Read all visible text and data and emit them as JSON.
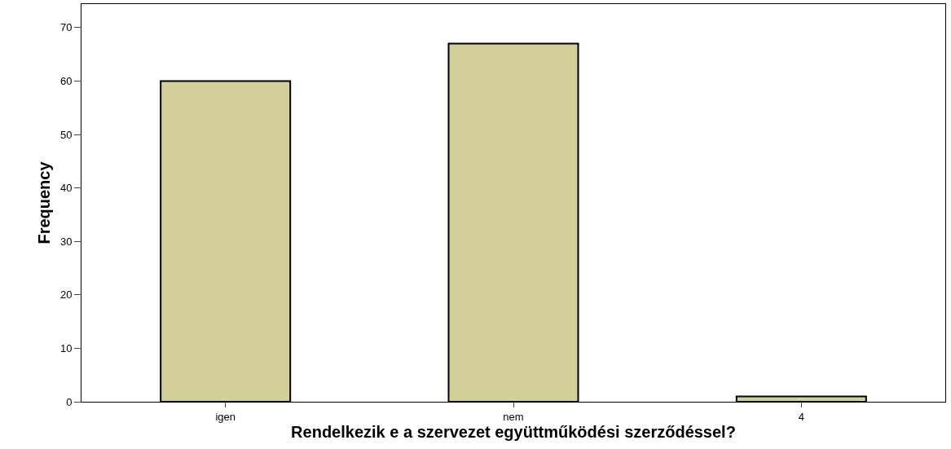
{
  "chart_data": {
    "type": "bar",
    "xlabel": "Rendelkezik e a szervezet együttműködési szerződéssel?",
    "ylabel": "Frequency",
    "categories": [
      "igen",
      "nem",
      "4"
    ],
    "values": [
      60,
      67,
      1
    ],
    "color": "#d3cf9a",
    "ylim": [
      0,
      74.4
    ],
    "yticks": [
      0,
      10,
      20,
      30,
      40,
      50,
      60,
      70
    ]
  }
}
